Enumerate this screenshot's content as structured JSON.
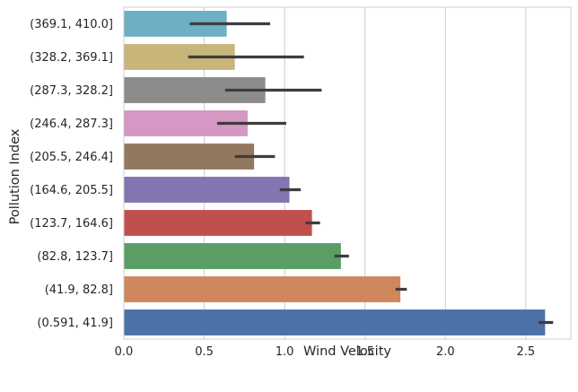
{
  "chart_data": {
    "type": "bar",
    "orientation": "horizontal",
    "xlabel": "Wind Velocity",
    "ylabel": "Pollution Index",
    "xlim": [
      0,
      2.78
    ],
    "x_ticks": [
      0.0,
      0.5,
      1.0,
      1.5,
      2.0,
      2.5
    ],
    "x_tick_labels": [
      "0.0",
      "0.5",
      "1.0",
      "1.5",
      "2.0",
      "2.5"
    ],
    "grid": "vertical",
    "categories": [
      "(369.1, 410.0]",
      "(328.2, 369.1]",
      "(287.3, 328.2]",
      "(246.4, 287.3]",
      "(205.5, 246.4]",
      "(164.6, 205.5]",
      "(123.7, 164.6]",
      "(82.8, 123.7]",
      "(41.9, 82.8]",
      "(0.591, 41.9]"
    ],
    "values": [
      0.64,
      0.69,
      0.88,
      0.77,
      0.81,
      1.03,
      1.17,
      1.35,
      1.72,
      2.62
    ],
    "ci_low": [
      0.41,
      0.4,
      0.63,
      0.58,
      0.69,
      0.97,
      1.13,
      1.31,
      1.69,
      2.58
    ],
    "ci_high": [
      0.91,
      1.12,
      1.23,
      1.01,
      0.94,
      1.1,
      1.22,
      1.4,
      1.76,
      2.67
    ],
    "colors": [
      "#6db0c4",
      "#c8b579",
      "#8c8c8c",
      "#d597c3",
      "#937860",
      "#8374b2",
      "#c0504d",
      "#5a9e63",
      "#d0875b",
      "#4c70a8"
    ]
  }
}
